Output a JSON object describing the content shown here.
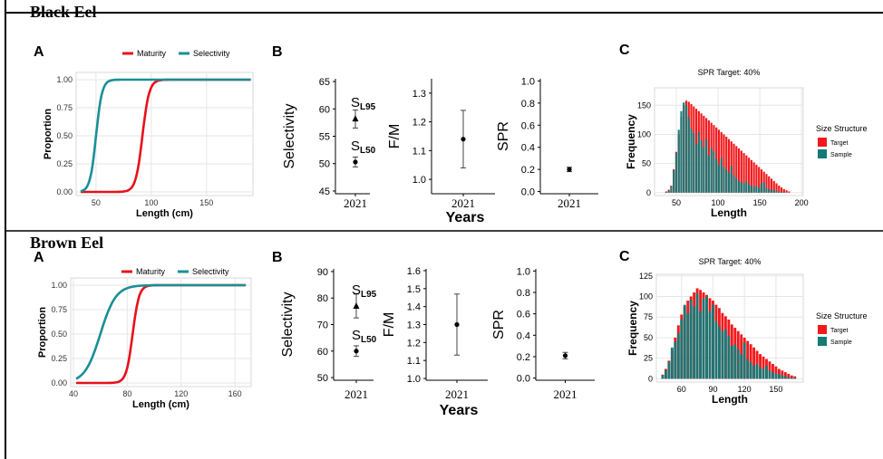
{
  "colors": {
    "maturity": "#e8101a",
    "selectivity": "#1a8f96",
    "target": "#f2191c",
    "sample": "#137a78",
    "grid": "#e6e6e6",
    "frame": "#000000"
  },
  "rows": [
    {
      "species": "Black Eel",
      "panelA": {
        "letter": "A",
        "legend": [
          "Maturity",
          "Selectivity"
        ],
        "xlabel": "Length (cm)",
        "ylabel": "Proportion",
        "xticks": [
          "50",
          "100",
          "150"
        ],
        "yticks": [
          "0.00",
          "0.25",
          "0.50",
          "0.75",
          "1.00"
        ],
        "chart_data": {
          "type": "line",
          "xlim": [
            32,
            192
          ],
          "ylim": [
            0,
            1
          ],
          "series": [
            {
              "name": "Maturity",
              "L50": 92,
              "L95": 101,
              "x_range": [
                36,
                190
              ]
            },
            {
              "name": "Selectivity",
              "L50": 50,
              "L95": 58,
              "x_range": [
                36,
                190
              ]
            }
          ]
        }
      },
      "panelB": {
        "letter": "B",
        "xlabel": "Years",
        "sel": {
          "ylabel": "Selectivity",
          "year": "2021",
          "yticks": [
            "45",
            "50",
            "55",
            "60",
            "65"
          ],
          "ylim": [
            44.5,
            65.5
          ],
          "points": [
            {
              "label": "S",
              "sub": "L95",
              "value": 58.2,
              "lo": 56.5,
              "hi": 59.8,
              "marker": "triangle"
            },
            {
              "label": "S",
              "sub": "L50",
              "value": 50.3,
              "lo": 49.4,
              "hi": 51.2,
              "marker": "circle"
            }
          ]
        },
        "fm": {
          "ylabel": "F/M",
          "year": "2021",
          "yticks": [
            "1.0",
            "1.1",
            "1.2",
            "1.3"
          ],
          "ylim": [
            0.95,
            1.35
          ],
          "value": 1.14,
          "lo": 1.04,
          "hi": 1.24
        },
        "spr": {
          "ylabel": "SPR",
          "year": "2021",
          "yticks": [
            "0.0",
            "0.2",
            "0.4",
            "0.6",
            "0.8",
            "1.0"
          ],
          "ylim": [
            -0.02,
            1.02
          ],
          "value": 0.2,
          "lo": 0.18,
          "hi": 0.22
        }
      },
      "panelC": {
        "letter": "C",
        "title": "SPR Target: 40%",
        "xlabel": "Length",
        "ylabel": "Frequency",
        "legend_title": "Size Structure",
        "legend": [
          "Target",
          "Sample"
        ],
        "xticks": [
          "50",
          "100",
          "150",
          "200"
        ],
        "yticks": [
          "0",
          "50",
          "100",
          "150"
        ],
        "chart_data": {
          "type": "bar",
          "xlim": [
            24,
            202
          ],
          "ylim": [
            -5,
            180
          ],
          "bin_width": 3,
          "x": [
            38,
            41,
            44,
            47,
            50,
            53,
            56,
            59,
            62,
            65,
            68,
            71,
            74,
            77,
            80,
            83,
            86,
            89,
            92,
            95,
            98,
            101,
            104,
            107,
            110,
            113,
            116,
            119,
            122,
            125,
            128,
            131,
            134,
            137,
            140,
            143,
            146,
            149,
            152,
            155,
            158,
            161,
            164,
            167,
            170,
            173,
            176,
            179,
            182,
            185
          ],
          "target": [
            2,
            5,
            12,
            40,
            70,
            100,
            130,
            150,
            158,
            156,
            152,
            148,
            144,
            140,
            136,
            132,
            128,
            124,
            120,
            116,
            112,
            108,
            104,
            100,
            96,
            92,
            88,
            84,
            80,
            76,
            72,
            68,
            64,
            60,
            56,
            52,
            48,
            44,
            40,
            36,
            32,
            28,
            24,
            20,
            16,
            12,
            9,
            6,
            4,
            2
          ],
          "sample": [
            1,
            3,
            10,
            38,
            68,
            108,
            140,
            155,
            150,
            130,
            110,
            102,
            84,
            104,
            90,
            78,
            92,
            64,
            78,
            70,
            58,
            48,
            60,
            44,
            40,
            34,
            46,
            30,
            24,
            20,
            18,
            16,
            20,
            14,
            12,
            10,
            12,
            8,
            16,
            18,
            8,
            6,
            5,
            4,
            3,
            2,
            1,
            1,
            0,
            0
          ]
        }
      }
    },
    {
      "species": "Brown Eel",
      "panelA": {
        "letter": "A",
        "legend": [
          "Maturity",
          "Selectivity"
        ],
        "xlabel": "Length (cm)",
        "ylabel": "Proportion",
        "xticks": [
          "40",
          "80",
          "120",
          "160"
        ],
        "yticks": [
          "0.00",
          "0.25",
          "0.50",
          "0.75",
          "1.00"
        ],
        "chart_data": {
          "type": "line",
          "xlim": [
            38,
            172
          ],
          "ylim": [
            0,
            1
          ],
          "series": [
            {
              "name": "Maturity",
              "L50": 84,
              "L95": 91,
              "x_range": [
                42,
                168
              ]
            },
            {
              "name": "Selectivity",
              "L50": 60,
              "L95": 77,
              "x_range": [
                42,
                168
              ]
            }
          ]
        }
      },
      "panelB": {
        "letter": "B",
        "xlabel": "Years",
        "sel": {
          "ylabel": "Selectivity",
          "year": "2021",
          "yticks": [
            "50",
            "60",
            "70",
            "80",
            "90"
          ],
          "ylim": [
            49,
            91
          ],
          "lab_dx": 0,
          "points": [
            {
              "label": "S",
              "sub": "L95",
              "value": 77,
              "lo": 72.5,
              "hi": 81.5,
              "marker": "triangle"
            },
            {
              "label": "S",
              "sub": "L50",
              "value": 60,
              "lo": 58,
              "hi": 62,
              "marker": "circle"
            }
          ]
        },
        "fm": {
          "ylabel": "F/M",
          "year": "2021",
          "yticks": [
            "1.0",
            "1.1",
            "1.2",
            "1.3",
            "1.4",
            "1.5",
            "1.6"
          ],
          "ylim": [
            0.99,
            1.61
          ],
          "value": 1.3,
          "lo": 1.13,
          "hi": 1.47
        },
        "spr": {
          "ylabel": "SPR",
          "year": "2021",
          "yticks": [
            "0.0",
            "0.2",
            "0.4",
            "0.6",
            "0.8",
            "1.0"
          ],
          "ylim": [
            -0.02,
            1.02
          ],
          "value": 0.21,
          "lo": 0.18,
          "hi": 0.24
        }
      },
      "panelC": {
        "letter": "C",
        "title": "SPR Target: 40%",
        "xlabel": "Length",
        "ylabel": "Frequency",
        "legend_title": "Size Structure",
        "legend": [
          "Target",
          "Sample"
        ],
        "xticks": [
          "60",
          "90",
          "120",
          "150"
        ],
        "yticks": [
          "0",
          "25",
          "50",
          "75",
          "100",
          "125"
        ],
        "chart_data": {
          "type": "bar",
          "xlim": [
            36,
            176
          ],
          "ylim": [
            -4,
            127
          ],
          "bin_width": 3,
          "x": [
            42,
            45,
            48,
            51,
            54,
            57,
            60,
            63,
            66,
            69,
            72,
            75,
            78,
            81,
            84,
            87,
            90,
            93,
            96,
            99,
            102,
            105,
            108,
            111,
            114,
            117,
            120,
            123,
            126,
            129,
            132,
            135,
            138,
            141,
            144,
            147,
            150,
            153,
            156,
            159,
            162,
            165,
            168
          ],
          "target": [
            5,
            12,
            22,
            35,
            50,
            65,
            78,
            88,
            95,
            100,
            105,
            110,
            108,
            105,
            102,
            98,
            95,
            90,
            86,
            80,
            76,
            72,
            66,
            62,
            58,
            54,
            50,
            46,
            42,
            38,
            34,
            30,
            27,
            24,
            21,
            18,
            15,
            12,
            10,
            8,
            6,
            4,
            3
          ],
          "sample": [
            4,
            10,
            20,
            38,
            45,
            55,
            72,
            90,
            80,
            96,
            88,
            104,
            82,
            98,
            100,
            82,
            90,
            70,
            64,
            58,
            60,
            52,
            40,
            42,
            36,
            30,
            44,
            24,
            20,
            16,
            18,
            14,
            12,
            16,
            10,
            8,
            6,
            6,
            4,
            3,
            2,
            1,
            1
          ]
        }
      }
    }
  ]
}
